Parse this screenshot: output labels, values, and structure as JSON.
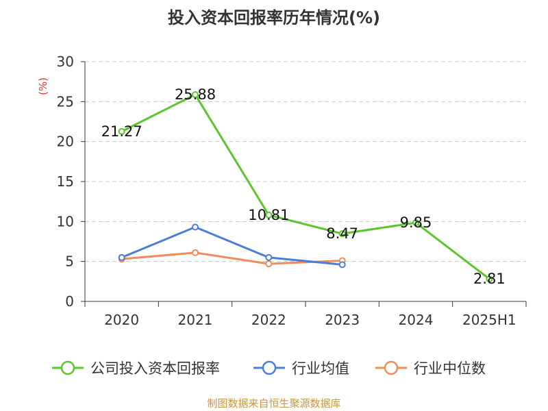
{
  "chart_data": {
    "type": "line",
    "title": "投入资本回报率历年情况(%)",
    "ylabel": "(%)",
    "categories": [
      "2020",
      "2021",
      "2022",
      "2023",
      "2024",
      "2025H1"
    ],
    "ylim": [
      0,
      30
    ],
    "yticks": [
      0,
      5,
      10,
      15,
      20,
      25,
      30
    ],
    "grid": true,
    "legend_position": "bottom",
    "series": [
      {
        "name": "公司投入资本回报率",
        "color": "#5ac52e",
        "show_labels": true,
        "values": [
          21.27,
          25.88,
          10.81,
          8.47,
          9.85,
          2.81
        ]
      },
      {
        "name": "行业均值",
        "color": "#4a7ddb",
        "show_labels": false,
        "values": [
          5.5,
          9.3,
          5.5,
          4.6,
          null,
          null
        ]
      },
      {
        "name": "行业中位数",
        "color": "#f08c5a",
        "show_labels": false,
        "values": [
          5.3,
          6.1,
          4.7,
          5.1,
          null,
          null
        ]
      }
    ]
  },
  "footer": "制图数据来自恒生聚源数据库"
}
